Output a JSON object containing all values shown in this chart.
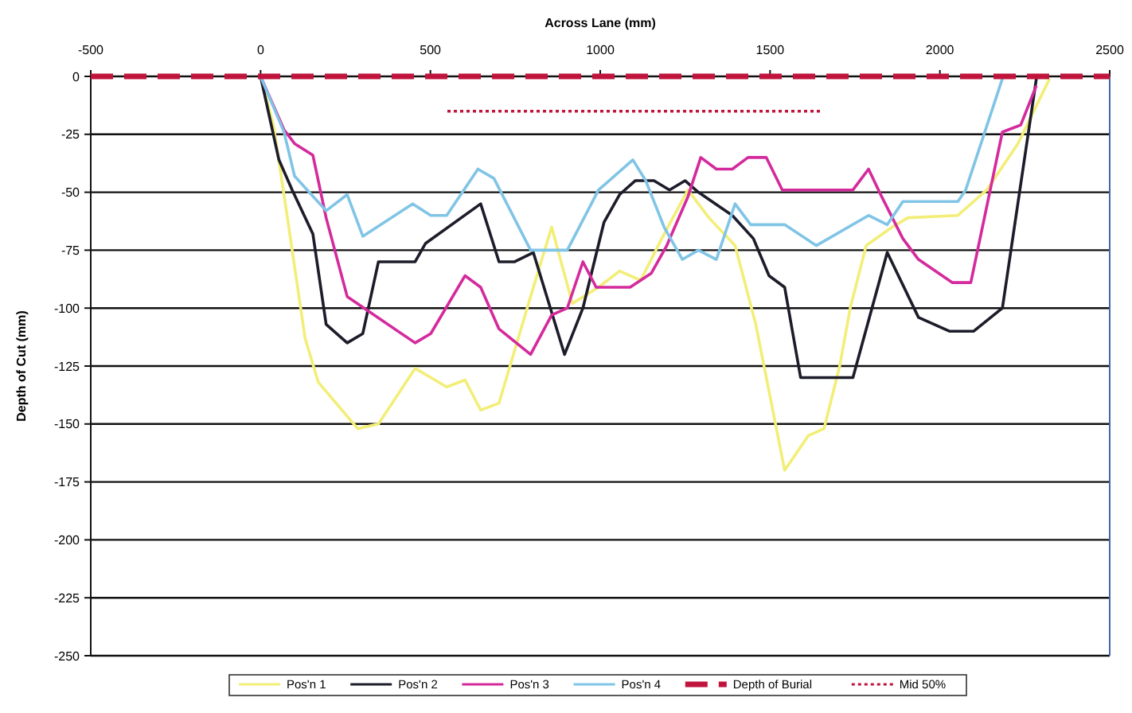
{
  "chart_data": {
    "type": "line",
    "xlabel": "Across Lane (mm)",
    "ylabel": "Depth of Cut (mm)",
    "xlim": [
      -500,
      2500
    ],
    "xticks": [
      -500,
      0,
      500,
      1000,
      1500,
      2000,
      2500
    ],
    "ylim": [
      -250,
      0
    ],
    "yticks": [
      -250,
      -225,
      -200,
      -175,
      -150,
      -125,
      -100,
      -75,
      -50,
      -25,
      0
    ],
    "grid": "y",
    "legend": "bottom",
    "marker": "none",
    "series": [
      {
        "name": "Pos'n 1",
        "color": "#f2ee78",
        "x": [
          0,
          39,
          77,
          131,
          170,
          286,
          347,
          455,
          548,
          602,
          648,
          702,
          795,
          857,
          918,
          995,
          1057,
          1119,
          1181,
          1258,
          1320,
          1397,
          1458,
          1543,
          1613,
          1659,
          1705,
          1736,
          1783,
          1860,
          1906,
          2053,
          2138,
          2230,
          2323
        ],
        "values": [
          0,
          -22,
          -59,
          -113,
          -132,
          -152,
          -150,
          -126,
          -134,
          -131,
          -144,
          -141,
          -95,
          -65,
          -98,
          -91,
          -84,
          -88,
          -70,
          -49,
          -61,
          -73,
          -107,
          -170,
          -155,
          -152,
          -125,
          -100,
          -73,
          -65,
          -61,
          -60,
          -49,
          -29,
          -1
        ]
      },
      {
        "name": "Pos'n 2",
        "color": "#1c1c2a",
        "x": [
          0,
          54,
          93,
          154,
          193,
          255,
          301,
          347,
          455,
          486,
          648,
          702,
          748,
          803,
          895,
          949,
          1011,
          1057,
          1103,
          1158,
          1204,
          1250,
          1289,
          1389,
          1451,
          1497,
          1543,
          1590,
          1744,
          1845,
          1937,
          2029,
          2099,
          2184,
          2284
        ],
        "values": [
          0,
          -36,
          -49,
          -68,
          -107,
          -115,
          -111,
          -80,
          -80,
          -72,
          -55,
          -80,
          -80,
          -76,
          -120,
          -100,
          -63,
          -51,
          -45,
          -45,
          -49,
          -45,
          -50,
          -60,
          -70,
          -86,
          -91,
          -130,
          -130,
          -76,
          -104,
          -110,
          -110,
          -100,
          -1
        ]
      },
      {
        "name": "Pos'n 3",
        "color": "#d42a9c",
        "x": [
          0,
          69,
          100,
          154,
          193,
          255,
          455,
          501,
          602,
          648,
          702,
          795,
          857,
          903,
          949,
          988,
          1088,
          1150,
          1196,
          1258,
          1296,
          1342,
          1389,
          1435,
          1489,
          1536,
          1744,
          1790,
          1829,
          1891,
          1937,
          2037,
          2091,
          2184,
          2238,
          2284
        ],
        "values": [
          0,
          -23,
          -29,
          -34,
          -61,
          -95,
          -115,
          -111,
          -86,
          -91,
          -109,
          -120,
          -103,
          -100,
          -80,
          -91,
          -91,
          -85,
          -73,
          -52,
          -35,
          -40,
          -40,
          -35,
          -35,
          -49,
          -49,
          -40,
          -52,
          -70,
          -79,
          -89,
          -89,
          -24,
          -21,
          -4
        ]
      },
      {
        "name": "Pos'n 4",
        "color": "#80c4e6",
        "x": [
          0,
          69,
          100,
          193,
          255,
          301,
          448,
          501,
          548,
          640,
          687,
          795,
          903,
          995,
          1096,
          1134,
          1188,
          1242,
          1289,
          1342,
          1397,
          1443,
          1543,
          1636,
          1790,
          1845,
          1891,
          2053,
          2076,
          2184
        ],
        "values": [
          0,
          -24,
          -43,
          -58,
          -51,
          -69,
          -55,
          -60,
          -60,
          -40,
          -44,
          -75,
          -75,
          -49,
          -36,
          -45,
          -65,
          -79,
          -75,
          -79,
          -55,
          -64,
          -64,
          -73,
          -60,
          -64,
          -54,
          -54,
          -49,
          -1
        ]
      },
      {
        "name": "Depth of Burial",
        "color": "#c0143c",
        "line_style": "dashed",
        "x": [
          -500,
          2500
        ],
        "values": [
          0,
          0
        ]
      },
      {
        "name": "Mid 50%",
        "color": "#c0143c",
        "line_style": "dotted",
        "x": [
          550,
          1650
        ],
        "values": [
          -15,
          -15
        ]
      }
    ]
  }
}
